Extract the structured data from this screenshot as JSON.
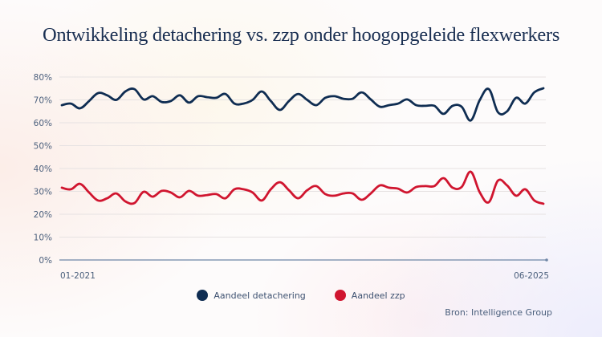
{
  "chart_data": {
    "type": "line",
    "title": "Ontwikkeling detachering vs. zzp onder hoogopgeleide flexwerkers",
    "xlabel": "",
    "ylabel": "",
    "ylim": [
      0,
      80
    ],
    "yticks": [
      "0%",
      "10%",
      "20%",
      "30%",
      "40%",
      "50%",
      "60%",
      "70%",
      "80%"
    ],
    "ytick_values": [
      0,
      10,
      20,
      30,
      40,
      50,
      60,
      70,
      80
    ],
    "x_start_label": "01-2021",
    "x_end_label": "06-2025",
    "grid": true,
    "legend_position": "bottom",
    "series": [
      {
        "name": "Aandeel detachering",
        "color": "#0f2d52",
        "values": [
          67.7,
          68.4,
          66.3,
          69.5,
          73,
          72,
          70,
          73.7,
          74.7,
          70.2,
          71.6,
          69.1,
          69.5,
          72,
          68.8,
          71.6,
          71.2,
          70.9,
          72.6,
          68.4,
          68.4,
          70,
          73.7,
          69.5,
          65.6,
          69.5,
          72.6,
          70,
          67.7,
          70.9,
          71.6,
          70.5,
          70.5,
          73.3,
          70.2,
          67,
          67.7,
          68.4,
          70.2,
          67.7,
          67.4,
          67.4,
          63.9,
          67.4,
          67,
          61,
          70,
          74.7,
          64.6,
          65,
          70.9,
          68.4,
          73.3,
          75.1
        ]
      },
      {
        "name": "Aandeel zzp",
        "color": "#d0152f",
        "values": [
          31.6,
          30.9,
          33.3,
          29.5,
          26,
          27,
          29.1,
          25.6,
          24.9,
          29.8,
          27.7,
          30.2,
          29.5,
          27.4,
          30.2,
          28.1,
          28.4,
          28.8,
          27,
          30.9,
          30.9,
          29.5,
          26,
          30.9,
          34,
          30.5,
          27,
          30.5,
          32.3,
          28.8,
          28.1,
          29.1,
          29.1,
          26.3,
          29.1,
          32.6,
          31.6,
          31.2,
          29.5,
          31.9,
          32.3,
          32.3,
          35.8,
          31.6,
          31.9,
          38.6,
          29.5,
          25.3,
          34.7,
          32.6,
          28.1,
          30.9,
          26,
          24.6
        ]
      }
    ]
  },
  "source": "Bron: Intelligence Group",
  "colors": {
    "axis": "#6e86a6",
    "grid": "#e6e2e2",
    "text": "#4a5f7c",
    "title": "#1a2f52"
  }
}
